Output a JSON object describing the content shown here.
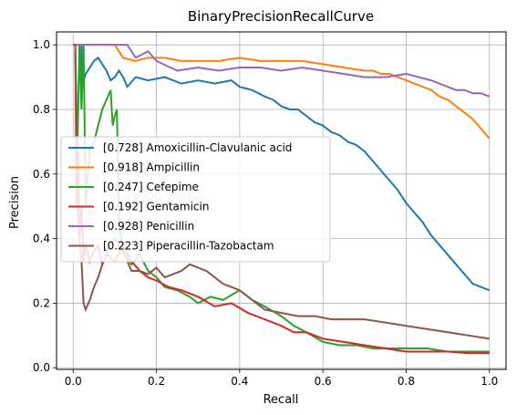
{
  "chart_data": {
    "type": "line",
    "title": "BinaryPrecisionRecallCurve",
    "xlabel": "Recall",
    "ylabel": "Precision",
    "xlim": [
      -0.04,
      1.04
    ],
    "ylim": [
      -0.005,
      1.04
    ],
    "xticks": [
      0.0,
      0.2,
      0.4,
      0.6,
      0.8,
      1.0
    ],
    "xtick_labels": [
      "0.0",
      "0.2",
      "0.4",
      "0.6",
      "0.8",
      "1.0"
    ],
    "yticks": [
      0.0,
      0.2,
      0.4,
      0.6,
      0.8,
      1.0
    ],
    "ytick_labels": [
      "0.0",
      "0.2",
      "0.4",
      "0.6",
      "0.8",
      "1.0"
    ],
    "grid": true,
    "legend_position": "center-left",
    "series": [
      {
        "name": "[0.728] Amoxicillin-Clavulanic acid",
        "color": "#1f77b4",
        "x": [
          0.0,
          0.005,
          0.01,
          0.02,
          0.02,
          0.025,
          0.03,
          0.04,
          0.05,
          0.06,
          0.07,
          0.08,
          0.09,
          0.1,
          0.11,
          0.12,
          0.13,
          0.15,
          0.18,
          0.22,
          0.26,
          0.3,
          0.34,
          0.38,
          0.4,
          0.43,
          0.46,
          0.48,
          0.5,
          0.52,
          0.54,
          0.56,
          0.58,
          0.6,
          0.62,
          0.64,
          0.66,
          0.68,
          0.7,
          0.72,
          0.74,
          0.76,
          0.78,
          0.8,
          0.82,
          0.84,
          0.86,
          0.88,
          0.9,
          0.92,
          0.94,
          0.96,
          0.98,
          1.0
        ],
        "y": [
          1.0,
          1.0,
          1.0,
          1.0,
          0.86,
          0.89,
          0.91,
          0.93,
          0.95,
          0.96,
          0.94,
          0.92,
          0.89,
          0.9,
          0.92,
          0.9,
          0.87,
          0.9,
          0.89,
          0.9,
          0.88,
          0.89,
          0.88,
          0.89,
          0.87,
          0.86,
          0.84,
          0.83,
          0.81,
          0.8,
          0.8,
          0.78,
          0.76,
          0.75,
          0.73,
          0.72,
          0.7,
          0.69,
          0.67,
          0.64,
          0.61,
          0.58,
          0.55,
          0.51,
          0.48,
          0.45,
          0.41,
          0.38,
          0.35,
          0.32,
          0.29,
          0.26,
          0.25,
          0.24
        ]
      },
      {
        "name": "[0.918] Ampicillin",
        "color": "#ff7f0e",
        "x": [
          0.0,
          0.05,
          0.1,
          0.12,
          0.15,
          0.18,
          0.22,
          0.26,
          0.3,
          0.35,
          0.4,
          0.45,
          0.5,
          0.55,
          0.6,
          0.65,
          0.7,
          0.72,
          0.74,
          0.76,
          0.78,
          0.8,
          0.82,
          0.84,
          0.86,
          0.88,
          0.9,
          0.92,
          0.94,
          0.96,
          0.98,
          1.0
        ],
        "y": [
          1.0,
          1.0,
          1.0,
          0.96,
          0.95,
          0.96,
          0.96,
          0.95,
          0.95,
          0.95,
          0.96,
          0.95,
          0.95,
          0.95,
          0.94,
          0.93,
          0.92,
          0.92,
          0.91,
          0.91,
          0.9,
          0.89,
          0.88,
          0.87,
          0.86,
          0.84,
          0.83,
          0.81,
          0.79,
          0.77,
          0.74,
          0.71
        ]
      },
      {
        "name": "[0.247] Cefepime",
        "color": "#2ca02c",
        "x": [
          0.0,
          0.005,
          0.01,
          0.015,
          0.02,
          0.025,
          0.03,
          0.035,
          0.04,
          0.05,
          0.06,
          0.07,
          0.08,
          0.09,
          0.095,
          0.1,
          0.105,
          0.11,
          0.12,
          0.14,
          0.16,
          0.18,
          0.2,
          0.22,
          0.25,
          0.28,
          0.3,
          0.33,
          0.36,
          0.4,
          0.43,
          0.46,
          0.5,
          0.53,
          0.56,
          0.6,
          0.64,
          0.68,
          0.72,
          0.76,
          0.8,
          0.85,
          0.9,
          0.95,
          1.0
        ],
        "y": [
          1.0,
          1.0,
          0.67,
          1.0,
          0.8,
          1.0,
          0.5,
          0.6,
          0.67,
          0.7,
          0.75,
          0.8,
          0.83,
          0.86,
          0.75,
          0.78,
          0.8,
          0.45,
          0.36,
          0.32,
          0.35,
          0.3,
          0.28,
          0.25,
          0.24,
          0.22,
          0.2,
          0.22,
          0.21,
          0.24,
          0.21,
          0.19,
          0.16,
          0.13,
          0.11,
          0.08,
          0.07,
          0.07,
          0.06,
          0.06,
          0.06,
          0.06,
          0.05,
          0.05,
          0.05
        ]
      },
      {
        "name": "[0.192] Gentamicin",
        "color": "#d62728",
        "x": [
          0.0,
          0.005,
          0.008,
          0.012,
          0.015,
          0.02,
          0.025,
          0.03,
          0.04,
          0.05,
          0.06,
          0.07,
          0.08,
          0.1,
          0.12,
          0.14,
          0.16,
          0.18,
          0.2,
          0.23,
          0.26,
          0.3,
          0.34,
          0.38,
          0.42,
          0.46,
          0.5,
          0.53,
          0.56,
          0.6,
          0.65,
          0.7,
          0.75,
          0.8,
          0.85,
          0.9,
          0.95,
          1.0
        ],
        "y": [
          1.0,
          1.0,
          0.5,
          0.67,
          0.4,
          0.5,
          0.33,
          0.38,
          0.33,
          0.36,
          0.38,
          0.32,
          0.35,
          0.33,
          0.38,
          0.33,
          0.3,
          0.28,
          0.27,
          0.25,
          0.24,
          0.22,
          0.19,
          0.2,
          0.17,
          0.15,
          0.13,
          0.11,
          0.11,
          0.09,
          0.08,
          0.07,
          0.06,
          0.05,
          0.05,
          0.05,
          0.045,
          0.045
        ]
      },
      {
        "name": "[0.928] Penicillin",
        "color": "#9467bd",
        "x": [
          0.0,
          0.05,
          0.1,
          0.13,
          0.15,
          0.18,
          0.2,
          0.25,
          0.3,
          0.35,
          0.4,
          0.45,
          0.5,
          0.55,
          0.6,
          0.65,
          0.7,
          0.75,
          0.8,
          0.83,
          0.86,
          0.88,
          0.9,
          0.92,
          0.94,
          0.96,
          0.98,
          1.0
        ],
        "y": [
          1.0,
          1.0,
          1.0,
          1.0,
          0.96,
          0.98,
          0.95,
          0.92,
          0.93,
          0.92,
          0.93,
          0.93,
          0.92,
          0.93,
          0.92,
          0.91,
          0.9,
          0.9,
          0.91,
          0.9,
          0.89,
          0.88,
          0.87,
          0.86,
          0.86,
          0.85,
          0.85,
          0.84
        ]
      },
      {
        "name": "[0.223] Piperacillin-Tazobactam",
        "color": "#8c564b",
        "x": [
          0.0,
          0.005,
          0.01,
          0.015,
          0.02,
          0.025,
          0.03,
          0.04,
          0.05,
          0.06,
          0.07,
          0.08,
          0.09,
          0.1,
          0.12,
          0.14,
          0.16,
          0.18,
          0.2,
          0.22,
          0.24,
          0.26,
          0.28,
          0.3,
          0.32,
          0.34,
          0.36,
          0.38,
          0.4,
          0.43,
          0.46,
          0.5,
          0.54,
          0.58,
          0.62,
          0.66,
          0.7,
          0.75,
          0.8,
          0.85,
          0.9,
          0.95,
          1.0
        ],
        "y": [
          1.0,
          1.0,
          0.5,
          0.4,
          0.33,
          0.2,
          0.18,
          0.21,
          0.25,
          0.28,
          0.32,
          0.35,
          0.38,
          0.4,
          0.36,
          0.3,
          0.3,
          0.29,
          0.31,
          0.28,
          0.29,
          0.3,
          0.32,
          0.31,
          0.3,
          0.28,
          0.26,
          0.25,
          0.24,
          0.21,
          0.18,
          0.17,
          0.16,
          0.16,
          0.15,
          0.15,
          0.15,
          0.14,
          0.13,
          0.12,
          0.11,
          0.1,
          0.09
        ]
      }
    ]
  }
}
